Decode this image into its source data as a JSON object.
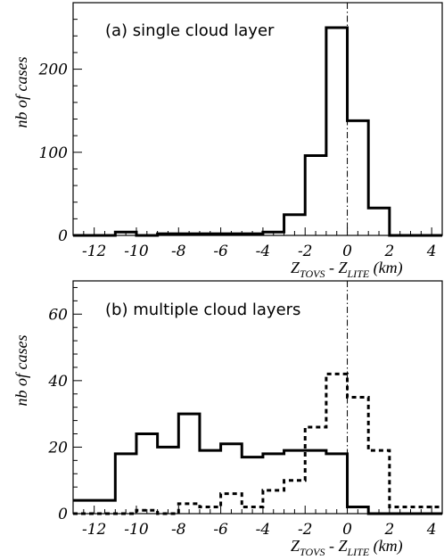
{
  "chart_data": [
    {
      "type": "histogram",
      "panel_label": "(a) single cloud layer",
      "ylabel": "nb of cases",
      "xlabel": {
        "main": "Z",
        "sub1": "TOVS",
        "mid": " - Z",
        "sub2": "LITE",
        "unit": " (km)"
      },
      "xlim": [
        -13,
        4.5
      ],
      "ylim": [
        0,
        280
      ],
      "xticks": [
        -12,
        -10,
        -8,
        -6,
        -4,
        -2,
        0,
        2,
        4
      ],
      "yticks": [
        0,
        100,
        200
      ],
      "reference_line_x": 0,
      "bin_edges": [
        -13,
        -12,
        -11,
        -10,
        -9,
        -8,
        -7,
        -6,
        -5,
        -4,
        -3,
        -2,
        -1,
        0,
        1,
        2,
        3,
        4,
        4.5
      ],
      "series": [
        {
          "style": "solid",
          "counts": [
            0,
            0,
            4,
            0,
            2,
            2,
            2,
            2,
            2,
            4,
            25,
            96,
            250,
            138,
            33,
            0,
            0,
            0
          ]
        }
      ]
    },
    {
      "type": "histogram",
      "panel_label": "(b) multiple cloud layers",
      "ylabel": "nb of cases",
      "xlabel": {
        "main": "Z",
        "sub1": "TOVS",
        "mid": " - Z",
        "sub2": "LITE",
        "unit": " (km)"
      },
      "xlim": [
        -13,
        4.5
      ],
      "ylim": [
        0,
        70
      ],
      "xticks": [
        -12,
        -10,
        -8,
        -6,
        -4,
        -2,
        0,
        2,
        4
      ],
      "yticks": [
        0,
        20,
        40,
        60
      ],
      "reference_line_x": 0,
      "bin_edges": [
        -13,
        -12,
        -11,
        -10,
        -9,
        -8,
        -7,
        -6,
        -5,
        -4,
        -3,
        -2,
        -1,
        0,
        1,
        2,
        3,
        4,
        4.5
      ],
      "series": [
        {
          "style": "solid",
          "counts": [
            4,
            4,
            18,
            24,
            20,
            30,
            19,
            21,
            17,
            18,
            19,
            19,
            18,
            2,
            0,
            0,
            0,
            0
          ]
        },
        {
          "style": "dashed",
          "counts": [
            0,
            0,
            0,
            1,
            0,
            3,
            2,
            6,
            2,
            7,
            10,
            26,
            42,
            35,
            19,
            2,
            2,
            2
          ]
        }
      ]
    }
  ]
}
